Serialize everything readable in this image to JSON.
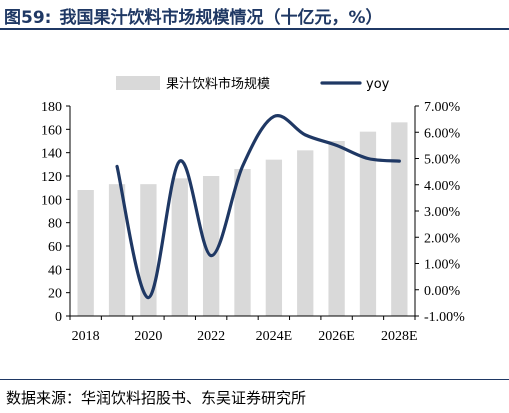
{
  "header": {
    "figure_number": "图59:",
    "title": "我国果汁饮料市场规模情况（十亿元，%）"
  },
  "footer": {
    "source": "数据来源：华润饮料招股书、东吴证券研究所"
  },
  "colors": {
    "bar": "#d9d9d9",
    "line": "#1f3864",
    "title": "#1f3864"
  },
  "chart_data": {
    "type": "bar",
    "categories": [
      "2018",
      "2019",
      "2020",
      "2021",
      "2022",
      "2023",
      "2024E",
      "2025E",
      "2026E",
      "2027E",
      "2028E"
    ],
    "x_tick_labels": [
      "2018",
      "2020",
      "2022",
      "2024E",
      "2026E",
      "2028E"
    ],
    "series": [
      {
        "name": "果汁饮料市场规模",
        "type": "bar",
        "axis": "left",
        "values": [
          108,
          113,
          113,
          118,
          120,
          126,
          134,
          142,
          150,
          158,
          166
        ]
      },
      {
        "name": "yoy",
        "type": "line",
        "axis": "right",
        "smooth": true,
        "values": [
          null,
          0.047,
          -0.003,
          0.049,
          0.013,
          0.047,
          0.066,
          0.059,
          0.055,
          0.05,
          0.049
        ]
      }
    ],
    "y_left": {
      "min": 0,
      "max": 180,
      "step": 20
    },
    "y_right": {
      "min": -0.01,
      "max": 0.07,
      "step": 0.01
    },
    "legend_position": "top",
    "grid": false
  }
}
